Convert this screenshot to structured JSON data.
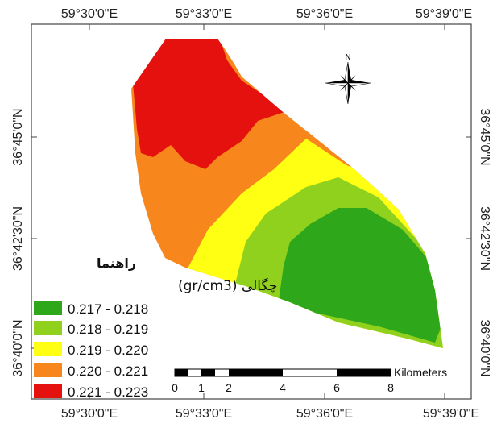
{
  "map": {
    "top_labels": [
      "59°30'0\"E",
      "59°33'0\"E",
      "59°36'0\"E",
      "59°39'0\"E"
    ],
    "bottom_labels": [
      "59°30'0\"E",
      "59°33'0\"E",
      "59°36'0\"E",
      "59°39'0\"E"
    ],
    "left_labels": [
      "36°45'0\"N",
      "36°42'30\"N",
      "36°40'0\"N"
    ],
    "right_labels": [
      "36°45'0\"N",
      "36°42'30\"N",
      "36°40'0\"N"
    ],
    "north_label": "N"
  },
  "legend": {
    "title": "راهنما",
    "subtitle": "چگالی (gr/cm3)",
    "classes": [
      {
        "label": "0.217 - 0.218",
        "color": "#2ea71a"
      },
      {
        "label": "0.218 - 0.219",
        "color": "#8fd11c"
      },
      {
        "label": "0.219 - 0.220",
        "color": "#ffff14"
      },
      {
        "label": "0.220 - 0.221",
        "color": "#f7861d"
      },
      {
        "label": "0.221 - 0.223",
        "color": "#e5110f"
      }
    ]
  },
  "scale_bar": {
    "unit": "Kilometers",
    "ticks": [
      "0",
      "1",
      "2",
      "4",
      "6",
      "8"
    ]
  }
}
